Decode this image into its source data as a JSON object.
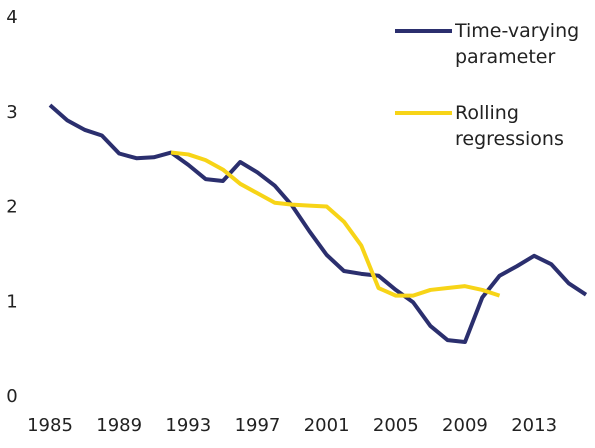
{
  "chart_data": {
    "type": "line",
    "x": [
      1985,
      1986,
      1987,
      1988,
      1989,
      1990,
      1991,
      1992,
      1993,
      1994,
      1995,
      1996,
      1997,
      1998,
      1999,
      2000,
      2001,
      2002,
      2003,
      2004,
      2005,
      2006,
      2007,
      2008,
      2009,
      2010,
      2011,
      2012,
      2013,
      2014,
      2015,
      2016
    ],
    "series": [
      {
        "name": "Time-varying parameter",
        "color": "#2b2f6e",
        "values": [
          3.08,
          2.92,
          2.82,
          2.76,
          2.57,
          2.52,
          2.53,
          2.58,
          2.45,
          2.3,
          2.28,
          2.48,
          2.37,
          2.23,
          2.02,
          1.75,
          1.5,
          1.33,
          1.3,
          1.28,
          1.13,
          1.0,
          0.75,
          0.6,
          0.58,
          1.05,
          1.28,
          1.38,
          1.49,
          1.4,
          1.2,
          1.08
        ]
      },
      {
        "name": "Rolling regressions",
        "color": "#f7d417",
        "values": [
          null,
          null,
          null,
          null,
          null,
          null,
          null,
          2.58,
          2.56,
          2.5,
          2.4,
          2.25,
          2.15,
          2.05,
          2.03,
          2.02,
          2.01,
          1.85,
          1.6,
          1.15,
          1.07,
          1.07,
          1.13,
          1.15,
          1.17,
          1.13,
          1.07,
          null,
          null,
          null,
          null,
          null
        ]
      }
    ],
    "xlim": [
      1985,
      2016
    ],
    "xticks": [
      1985,
      1989,
      1993,
      1997,
      2001,
      2005,
      2009,
      2013
    ],
    "ylim": [
      0,
      4
    ],
    "yticks": [
      0,
      1,
      2,
      3,
      4
    ]
  }
}
